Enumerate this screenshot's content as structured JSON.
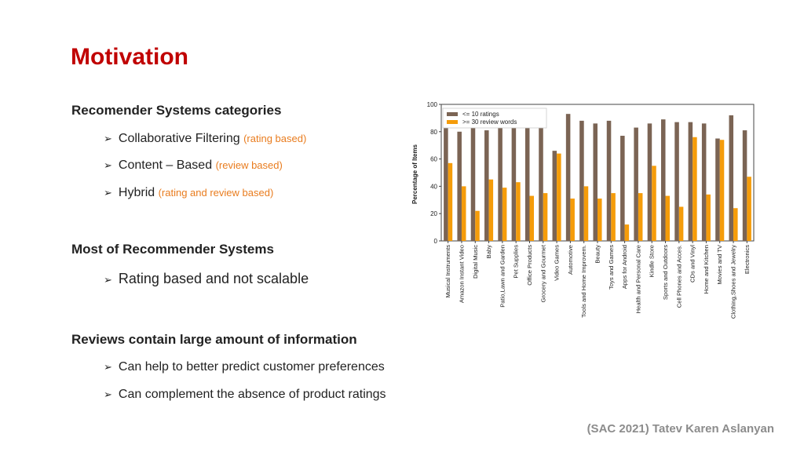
{
  "slide": {
    "title": "Motivation",
    "footer": "(SAC 2021) Tatev Karen Aslanyan"
  },
  "sections": [
    {
      "heading": "Recomender Systems categories",
      "bullets": [
        {
          "text": "Collaborative Filtering",
          "note": "(rating based)"
        },
        {
          "text": "Content – Based",
          "note": "(review based)"
        },
        {
          "text": "Hybrid",
          "note": "(rating and review based)"
        }
      ]
    },
    {
      "heading": "Most of Recommender Systems",
      "bullets": [
        {
          "text": "Rating based and not scalable",
          "note": ""
        }
      ]
    },
    {
      "heading": "Reviews contain large amount of information",
      "bullets": [
        {
          "text": "Can help to better predict customer preferences",
          "note": ""
        },
        {
          "text": "Can complement the absence of product ratings",
          "note": ""
        }
      ]
    }
  ],
  "bullet_glyph": "➢",
  "chart_data": {
    "type": "bar",
    "title": "",
    "xlabel": "",
    "ylabel": "Percentage of Items",
    "ylim": [
      0,
      100
    ],
    "yticks": [
      0,
      20,
      40,
      60,
      80,
      100
    ],
    "legend_position": "top-left",
    "grid": false,
    "categories": [
      "Musical Instruments",
      "Amazon Instant Video",
      "Digital Music",
      "Baby",
      "Patio,Lawn and Garden",
      "Pet Supplies",
      "Office Products",
      "Grocery and Gourmet",
      "Video Games",
      "Automotive",
      "Tools and Home Improvem.",
      "Beauty",
      "Toys and Games",
      "Apps for Android",
      "Health and Personal Care",
      "Kindle Store",
      "Sports and Outdoors",
      "Cell Phones and Acces.",
      "CDs and Vinyl",
      "Home and Kitchen",
      "Movies and TV",
      "Clothing,Shoes and Jewelry",
      "Electronics"
    ],
    "series": [
      {
        "name": "<= 10 ratings",
        "color": "#7b6454",
        "values": [
          84,
          80,
          85,
          81,
          84,
          83,
          85,
          87,
          66,
          93,
          88,
          86,
          88,
          77,
          83,
          86,
          89,
          87,
          87,
          86,
          75,
          92,
          81
        ]
      },
      {
        "name": ">= 30 review words",
        "color": "#f59c0a",
        "values": [
          57,
          40,
          22,
          45,
          39,
          43,
          33,
          35,
          64,
          31,
          40,
          31,
          35,
          12,
          35,
          55,
          33,
          25,
          76,
          34,
          74,
          24,
          47
        ]
      }
    ]
  }
}
